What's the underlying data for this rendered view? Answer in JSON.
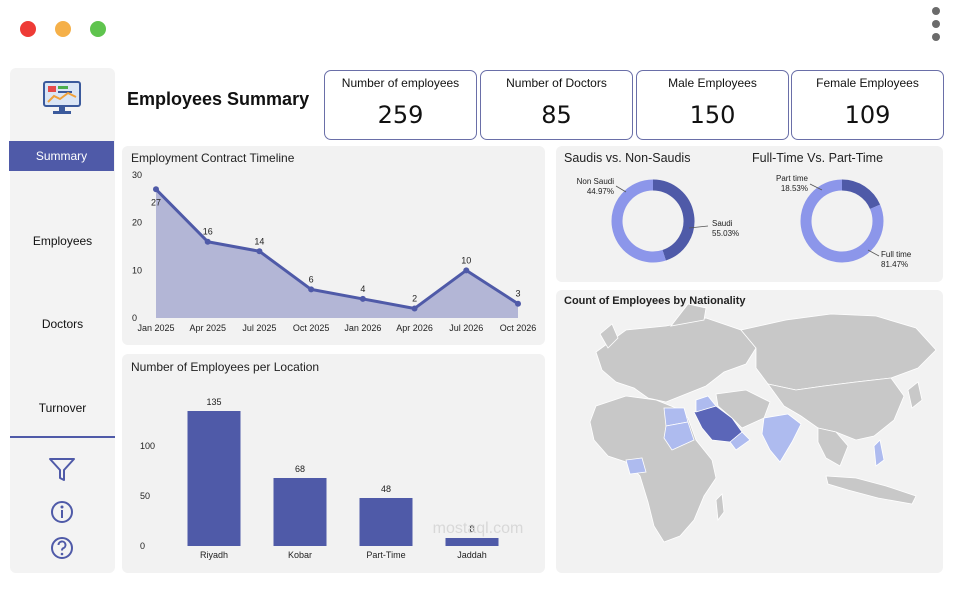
{
  "window": {
    "controls": {
      "close_color": "#ee3b36",
      "minimize_color": "#f5b049",
      "maximize_color": "#5fc44e"
    }
  },
  "sidebar": {
    "logo_icon": "monitor-dashboard-icon",
    "items": [
      {
        "label": "Summary",
        "active": true
      },
      {
        "label": "Employees",
        "active": false
      },
      {
        "label": "Doctors",
        "active": false
      },
      {
        "label": "Turnover",
        "active": false
      }
    ],
    "tool_icons": [
      "filter-icon",
      "info-icon",
      "help-icon"
    ]
  },
  "header": {
    "title": "Employees Summary"
  },
  "kpis": [
    {
      "label": "Number of employees",
      "value": "259"
    },
    {
      "label": "Number of Doctors",
      "value": "85"
    },
    {
      "label": "Male Employees",
      "value": "150"
    },
    {
      "label": "Female Employees",
      "value": "109"
    }
  ],
  "colors": {
    "accent": "#4f5aa8",
    "area_fill": "#b3b6d6",
    "donut_light": "#8c96ea",
    "donut_dark": "#4f5aa8",
    "map_land": "#c8c8c8",
    "map_highlight_dark": "#5b66b8",
    "map_highlight_light": "#aebbef"
  },
  "chart_data": [
    {
      "type": "area",
      "title": "Employment Contract Timeline",
      "categories": [
        "Jan 2025",
        "Apr 2025",
        "Jul 2025",
        "Oct 2025",
        "Jan 2026",
        "Apr 2026",
        "Jul 2026",
        "Oct 2026"
      ],
      "values": [
        27,
        16,
        14,
        6,
        4,
        2,
        10,
        3
      ],
      "yticks": [
        "0",
        "10",
        "20",
        "30"
      ],
      "ylim": [
        0,
        30
      ]
    },
    {
      "type": "bar",
      "title": "Number of Employees per Location",
      "categories": [
        "Riyadh",
        "Kobar",
        "Part-Time",
        "Jaddah"
      ],
      "values": [
        135,
        68,
        48,
        8
      ],
      "yticks": [
        "0",
        "50",
        "100"
      ],
      "ylim": [
        0,
        150
      ]
    },
    {
      "type": "pie",
      "title": "Saudis vs. Non-Saudis",
      "slices": [
        {
          "label": "Non Saudi",
          "pct_label": "44.97%",
          "value": 44.97
        },
        {
          "label": "Saudi",
          "pct_label": "55.03%",
          "value": 55.03
        }
      ]
    },
    {
      "type": "pie",
      "title": "Full-Time Vs. Part-Time",
      "slices": [
        {
          "label": "Part time",
          "pct_label": "18.53%",
          "value": 18.53
        },
        {
          "label": "Full time",
          "pct_label": "81.47%",
          "value": 81.47
        }
      ]
    }
  ],
  "map": {
    "title": "Count of Employees by Nationality"
  },
  "watermark": {
    "text": "mostaql.com"
  }
}
